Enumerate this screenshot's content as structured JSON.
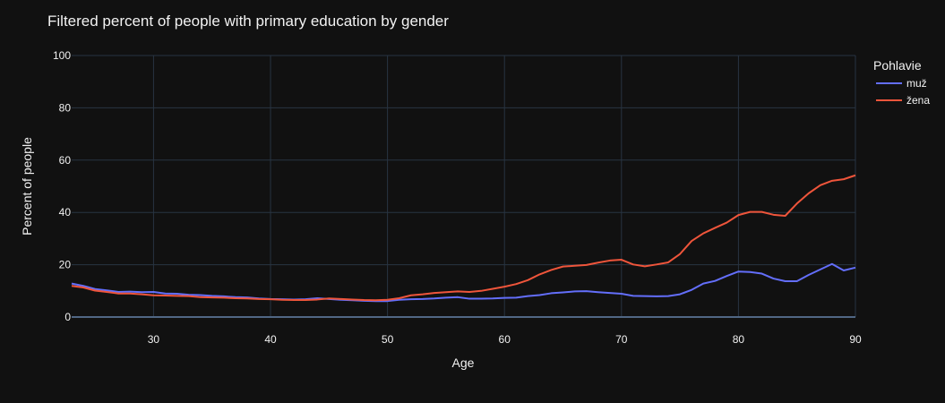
{
  "chart_data": {
    "type": "line",
    "title": "Filtered percent of people with primary education by gender",
    "xlabel": "Age",
    "ylabel": "Percent of people",
    "xlim": [
      23,
      90
    ],
    "ylim": [
      0,
      100
    ],
    "x_ticks": [
      30,
      40,
      50,
      60,
      70,
      80,
      90
    ],
    "y_ticks": [
      0,
      20,
      40,
      60,
      80,
      100
    ],
    "legend_title": "Pohlavie",
    "legend_position": "top-right",
    "grid": true,
    "x": [
      23,
      24,
      25,
      26,
      27,
      28,
      29,
      30,
      31,
      32,
      33,
      34,
      35,
      36,
      37,
      38,
      39,
      40,
      41,
      42,
      43,
      44,
      45,
      46,
      47,
      48,
      49,
      50,
      51,
      52,
      53,
      54,
      55,
      56,
      57,
      58,
      59,
      60,
      61,
      62,
      63,
      64,
      65,
      66,
      67,
      68,
      69,
      70,
      71,
      72,
      73,
      74,
      75,
      76,
      77,
      78,
      79,
      80,
      81,
      82,
      83,
      84,
      85,
      86,
      87,
      88,
      89,
      90
    ],
    "series": [
      {
        "name": "muž",
        "color": "#636efa",
        "values": [
          12.8,
          11.9,
          10.7,
          10.2,
          9.6,
          9.7,
          9.5,
          9.6,
          9.0,
          8.9,
          8.5,
          8.4,
          8.1,
          7.9,
          7.6,
          7.5,
          7.1,
          6.9,
          6.8,
          6.7,
          6.8,
          7.2,
          6.9,
          6.6,
          6.4,
          6.2,
          6.1,
          6.1,
          6.6,
          6.8,
          6.9,
          7.1,
          7.4,
          7.6,
          7.0,
          7.0,
          7.1,
          7.3,
          7.4,
          8.0,
          8.4,
          9.1,
          9.4,
          9.8,
          9.9,
          9.5,
          9.2,
          8.9,
          8.1,
          8.0,
          7.9,
          8.0,
          8.7,
          10.4,
          12.8,
          13.8,
          15.7,
          17.4,
          17.2,
          16.6,
          14.7,
          13.7,
          13.7,
          16.1,
          18.2,
          20.3,
          17.8,
          18.9
        ]
      },
      {
        "name": "žena",
        "color": "#ef553b",
        "values": [
          11.9,
          11.3,
          10.1,
          9.6,
          9.0,
          9.0,
          8.7,
          8.3,
          8.2,
          8.1,
          8.0,
          7.6,
          7.5,
          7.4,
          7.2,
          7.1,
          6.9,
          6.8,
          6.6,
          6.5,
          6.5,
          6.7,
          7.1,
          6.9,
          6.7,
          6.5,
          6.4,
          6.6,
          7.2,
          8.3,
          8.7,
          9.2,
          9.5,
          9.8,
          9.6,
          10.0,
          10.8,
          11.6,
          12.6,
          14.1,
          16.3,
          18.0,
          19.3,
          19.6,
          19.9,
          20.8,
          21.6,
          21.9,
          20.1,
          19.4,
          20.1,
          20.9,
          24.1,
          29.1,
          32.0,
          34.1,
          36.1,
          39.0,
          40.2,
          40.2,
          39.1,
          38.7,
          43.4,
          47.3,
          50.4,
          52.1,
          52.7,
          54.2
        ]
      }
    ]
  }
}
